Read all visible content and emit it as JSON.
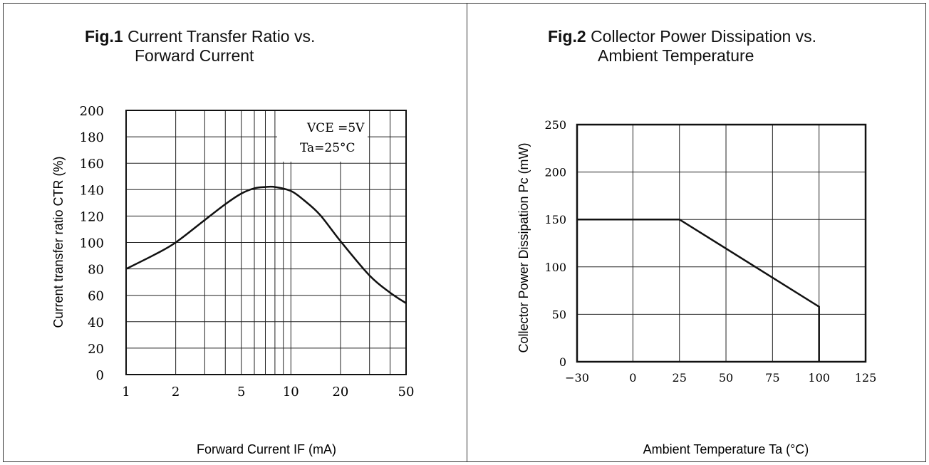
{
  "figures": {
    "fig1": {
      "number": "Fig.1",
      "title_line1": "Current Transfer Ratio vs.",
      "title_line2": "Forward Current"
    },
    "fig2": {
      "number": "Fig.2",
      "title_line1": "Collector Power Dissipation vs.",
      "title_line2": "Ambient Temperature"
    }
  },
  "chart_data": [
    {
      "type": "line",
      "title": "Fig.1 Current Transfer Ratio vs. Forward Current",
      "xlabel": "Forward Current IF (mA)",
      "ylabel": "Current transfer ratio CTR (%)",
      "xscale": "log",
      "xlim": [
        1,
        50
      ],
      "ylim": [
        0,
        200
      ],
      "xticks": [
        1,
        2,
        5,
        10,
        20,
        50
      ],
      "xtick_labels": [
        "1",
        "2",
        "5",
        "10",
        "20",
        "50"
      ],
      "yticks": [
        0,
        20,
        40,
        60,
        80,
        100,
        120,
        140,
        160,
        180,
        200
      ],
      "ytick_labels": [
        "0",
        "20",
        "40",
        "60",
        "80",
        "100",
        "120",
        "140",
        "160",
        "180",
        "200"
      ],
      "grid": true,
      "annotations": [
        "VCE =5V",
        "Ta=25°C"
      ],
      "series": [
        {
          "x": [
            1,
            1.5,
            2,
            3,
            4,
            5,
            6,
            7,
            8,
            10,
            12,
            15,
            20,
            30,
            40,
            50
          ],
          "y": [
            80,
            91,
            100,
            117,
            129,
            137,
            141,
            142,
            142,
            139,
            132,
            121,
            101,
            75,
            62,
            54
          ]
        }
      ]
    },
    {
      "type": "line",
      "title": "Fig.2 Collector Power Dissipation vs. Ambient Temperature",
      "xlabel": "Ambient Temperature Ta (°C)",
      "ylabel": "Collector Power Dissipation Pc (mW)",
      "xlim": [
        -30,
        125
      ],
      "ylim": [
        0,
        250
      ],
      "xticks": [
        -30,
        0,
        25,
        50,
        75,
        100,
        125
      ],
      "xtick_labels": [
        "−30",
        "0",
        "25",
        "50",
        "75",
        "100",
        "125"
      ],
      "yticks": [
        0,
        50,
        100,
        150,
        200,
        250
      ],
      "ytick_labels": [
        "0",
        "50",
        "100",
        "150",
        "200",
        "250"
      ],
      "grid": true,
      "series": [
        {
          "x": [
            -30,
            25,
            100,
            100
          ],
          "y": [
            150,
            150,
            58,
            0
          ]
        }
      ]
    }
  ]
}
